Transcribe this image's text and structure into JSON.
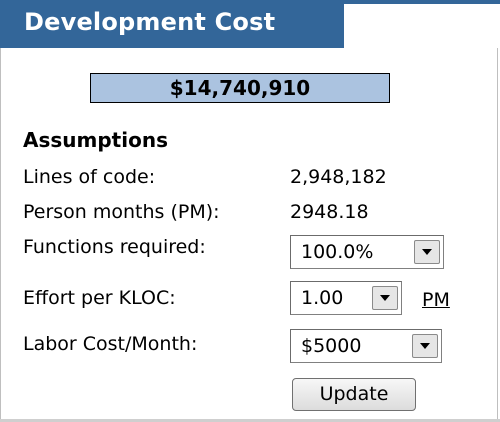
{
  "panel": {
    "title": "Development Cost",
    "total_cost": "$14,740,910"
  },
  "assumptions": {
    "heading": "Assumptions",
    "lines_of_code_label": "Lines of code:",
    "lines_of_code_value": "2,948,182",
    "person_months_label": "Person months (PM):",
    "person_months_value": "2948.18",
    "functions_label": "Functions required:",
    "functions_selected": "100.0%",
    "effort_label": "Effort per KLOC:",
    "effort_selected": "1.00",
    "effort_unit_link": "PM",
    "labor_label": "Labor Cost/Month:",
    "labor_selected": "$5000",
    "update_button": "Update"
  },
  "colors": {
    "title_bar": "#336699",
    "total_box": "#abc3e0"
  }
}
